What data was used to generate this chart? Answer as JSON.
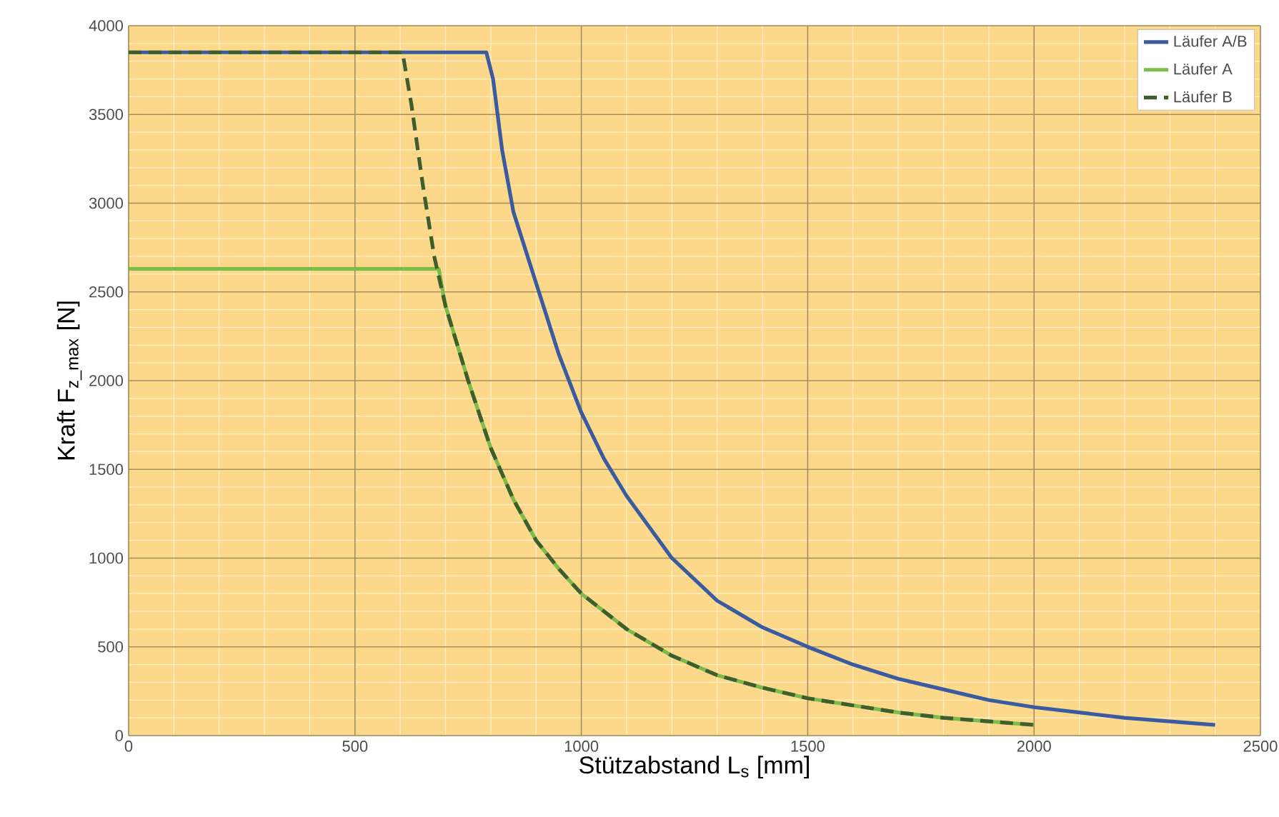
{
  "chart_data": {
    "type": "line",
    "xlabel": "Stützabstand L$_{s}$ [mm]",
    "ylabel": "Kraft F$_{z_max}$ [N]",
    "xlim": [
      0,
      2500
    ],
    "ylim": [
      0,
      4000
    ],
    "xticks": [
      0,
      {
        "value": 100,
        "label": null
      },
      {
        "value": 200,
        "label": null
      },
      {
        "value": 300,
        "label": null
      },
      {
        "value": 400,
        "label": null
      },
      500,
      {
        "value": 600,
        "label": null
      },
      {
        "value": 700,
        "label": null
      },
      {
        "value": 800,
        "label": null
      },
      {
        "value": 900,
        "label": null
      },
      1000,
      {
        "value": 1100,
        "label": null
      },
      {
        "value": 1200,
        "label": null
      },
      {
        "value": 1300,
        "label": null
      },
      {
        "value": 1400,
        "label": null
      },
      1500,
      {
        "value": 1600,
        "label": null
      },
      {
        "value": 1700,
        "label": null
      },
      {
        "value": 1800,
        "label": null
      },
      {
        "value": 1900,
        "label": null
      },
      2000,
      {
        "value": 2100,
        "label": null
      },
      {
        "value": 2200,
        "label": null
      },
      {
        "value": 2300,
        "label": null
      },
      {
        "value": 2400,
        "label": null
      },
      2500
    ],
    "yticks": [
      0,
      {
        "value": 100,
        "label": null
      },
      {
        "value": 200,
        "label": null
      },
      {
        "value": 300,
        "label": null
      },
      {
        "value": 400,
        "label": null
      },
      500,
      {
        "value": 600,
        "label": null
      },
      {
        "value": 700,
        "label": null
      },
      {
        "value": 800,
        "label": null
      },
      {
        "value": 900,
        "label": null
      },
      1000,
      {
        "value": 1100,
        "label": null
      },
      {
        "value": 1200,
        "label": null
      },
      {
        "value": 1300,
        "label": null
      },
      {
        "value": 1400,
        "label": null
      },
      1500,
      {
        "value": 1600,
        "label": null
      },
      {
        "value": 1700,
        "label": null
      },
      {
        "value": 1800,
        "label": null
      },
      {
        "value": 1900,
        "label": null
      },
      2000,
      {
        "value": 2100,
        "label": null
      },
      {
        "value": 2200,
        "label": null
      },
      {
        "value": 2300,
        "label": null
      },
      {
        "value": 2400,
        "label": null
      },
      2500,
      {
        "value": 2600,
        "label": null
      },
      {
        "value": 2700,
        "label": null
      },
      {
        "value": 2800,
        "label": null
      },
      {
        "value": 2900,
        "label": null
      },
      3000,
      {
        "value": 3100,
        "label": null
      },
      {
        "value": 3200,
        "label": null
      },
      {
        "value": 3300,
        "label": null
      },
      {
        "value": 3400,
        "label": null
      },
      3500,
      {
        "value": 3600,
        "label": null
      },
      {
        "value": 3700,
        "label": null
      },
      {
        "value": 3800,
        "label": null
      },
      {
        "value": 3900,
        "label": null
      },
      4000
    ],
    "grid": true,
    "legend": "top right",
    "marker": "none",
    "series": [
      {
        "name": "Läufer A/B",
        "color": "#3a5ba0",
        "line_style": "solid",
        "x": [
          0,
          790,
          805,
          825,
          850,
          875,
          900,
          950,
          1000,
          1050,
          1100,
          1200,
          1300,
          1400,
          1500,
          1600,
          1700,
          1800,
          1900,
          2000,
          2100,
          2200,
          2300,
          2400
        ],
        "values": [
          3850,
          3850,
          3700,
          3300,
          2950,
          2750,
          2550,
          2150,
          1820,
          1560,
          1350,
          1000,
          760,
          610,
          500,
          400,
          320,
          260,
          200,
          160,
          130,
          100,
          80,
          60
        ]
      },
      {
        "name": "Läufer A",
        "color": "#7dbb4a",
        "line_style": "solid",
        "x": [
          0,
          685,
          700,
          750,
          800,
          850,
          900,
          950,
          1000,
          1100,
          1200,
          1300,
          1400,
          1500,
          1600,
          1700,
          1800,
          1900,
          2000
        ],
        "values": [
          2630,
          2630,
          2420,
          2000,
          1620,
          1330,
          1100,
          940,
          800,
          600,
          450,
          340,
          270,
          210,
          170,
          130,
          100,
          80,
          60
        ]
      },
      {
        "name": "Läufer B",
        "color": "#3e5e2e",
        "line_style": "dashed",
        "x": [
          0,
          605,
          625,
          650,
          675,
          700,
          750,
          800,
          850,
          900,
          950,
          1000,
          1100,
          1200,
          1300,
          1400,
          1500,
          1600,
          1700,
          1800,
          1900,
          2000
        ],
        "values": [
          3850,
          3850,
          3550,
          3100,
          2700,
          2420,
          2000,
          1620,
          1330,
          1100,
          940,
          800,
          600,
          450,
          340,
          270,
          210,
          170,
          130,
          100,
          80,
          60
        ]
      }
    ]
  }
}
